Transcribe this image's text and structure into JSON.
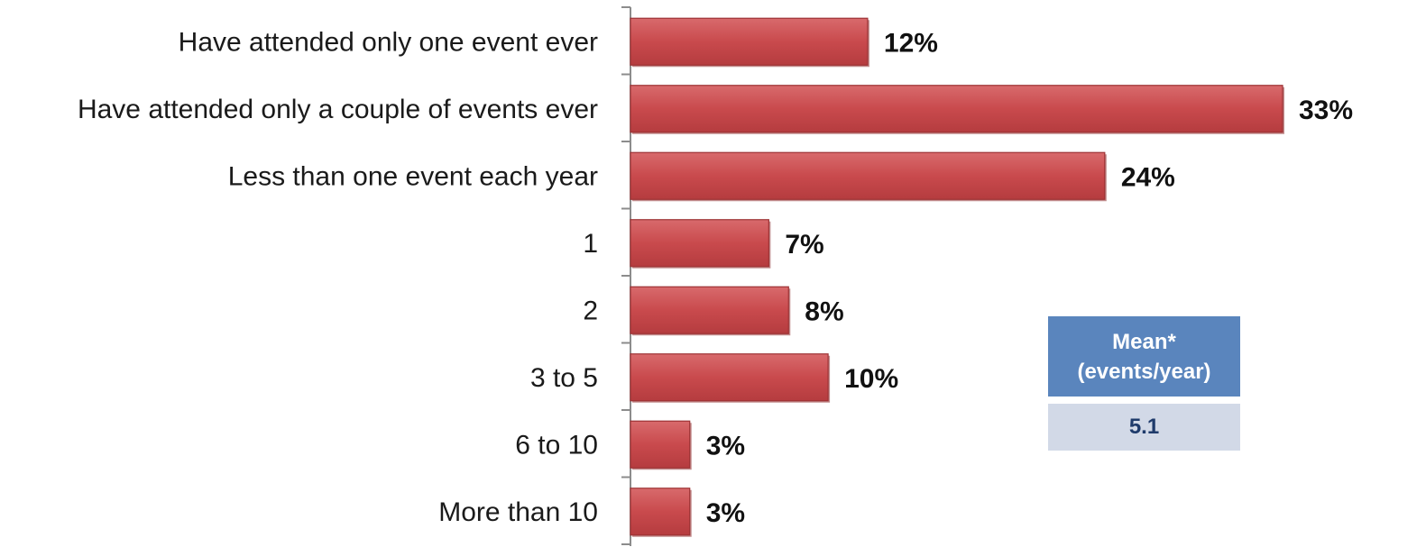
{
  "chart_data": {
    "type": "bar",
    "orientation": "horizontal",
    "categories": [
      "Have attended only one event ever",
      "Have attended only a couple of events ever",
      "Less than one event each year",
      "1",
      "2",
      "3 to 5",
      "6 to 10",
      "More than 10"
    ],
    "values": [
      12,
      33,
      24,
      7,
      8,
      10,
      3,
      3
    ],
    "value_labels": [
      "12%",
      "33%",
      "24%",
      "7%",
      "8%",
      "10%",
      "3%",
      "3%"
    ],
    "xlim": [
      0,
      33
    ],
    "bar_color": "#c94a4d",
    "grid": false
  },
  "mean_box": {
    "title": "Mean*",
    "subtitle": "(events/year)",
    "value": "5.1",
    "header_color": "#5a85bd",
    "value_bg_color": "#d2d9e7"
  }
}
